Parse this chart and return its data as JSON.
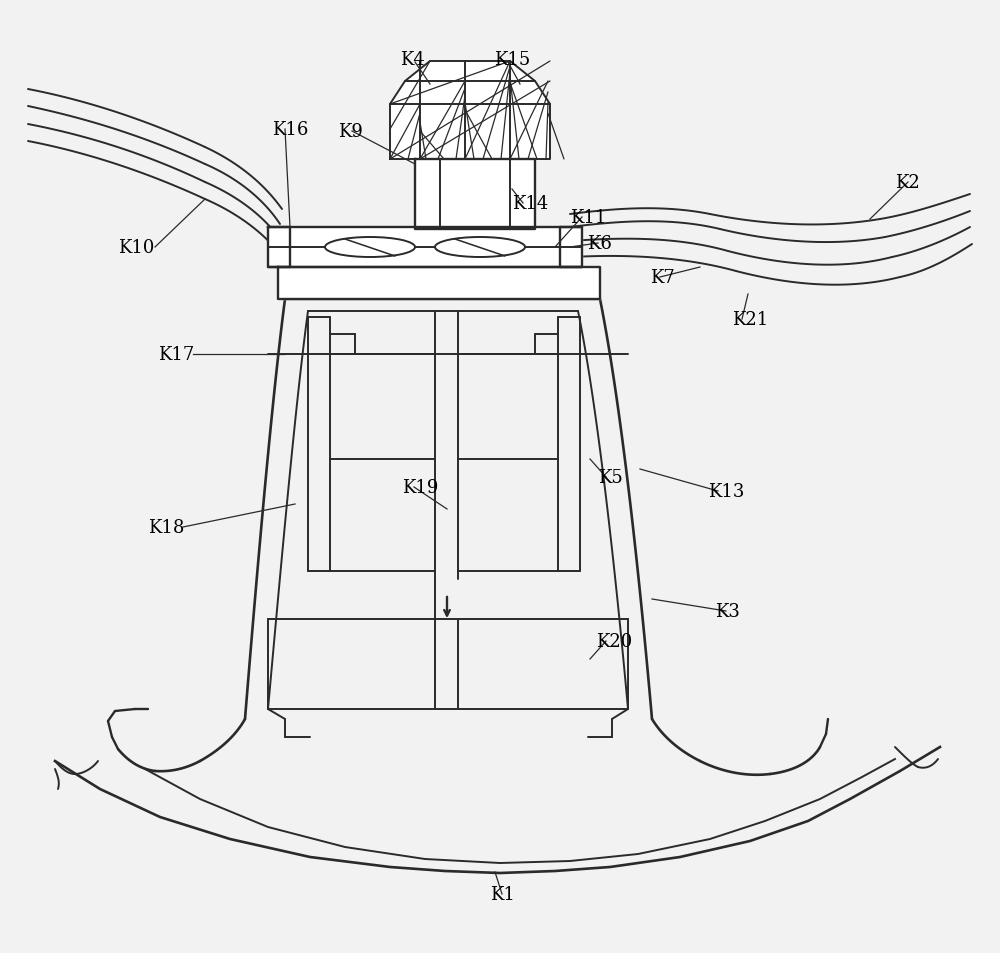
{
  "bg_color": "#f2f2f2",
  "line_color": "#2a2a2a",
  "line_width": 1.4,
  "font_size": 13,
  "labels": [
    [
      "K1",
      490,
      895
    ],
    [
      "K2",
      895,
      183
    ],
    [
      "K3",
      715,
      612
    ],
    [
      "K4",
      400,
      60
    ],
    [
      "K5",
      598,
      478
    ],
    [
      "K6",
      587,
      244
    ],
    [
      "K7",
      650,
      278
    ],
    [
      "K9",
      338,
      132
    ],
    [
      "K10",
      118,
      248
    ],
    [
      "K11",
      570,
      218
    ],
    [
      "K13",
      708,
      492
    ],
    [
      "K14",
      512,
      204
    ],
    [
      "K15",
      494,
      60
    ],
    [
      "K16",
      272,
      130
    ],
    [
      "K17",
      158,
      355
    ],
    [
      "K18",
      148,
      528
    ],
    [
      "K19",
      402,
      488
    ],
    [
      "K20",
      596,
      642
    ],
    [
      "K21",
      732,
      320
    ]
  ]
}
